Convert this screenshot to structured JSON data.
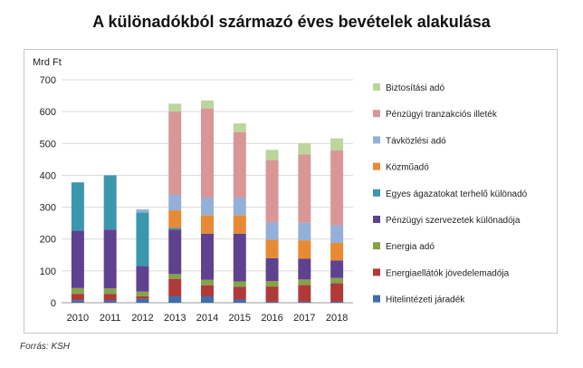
{
  "page": {
    "title": "A különadókból származó éves bevételek alakulása",
    "source": "Forrás: KSH"
  },
  "chart_data": {
    "type": "bar",
    "stacked": true,
    "title": "A különadókból származó éves bevételek alakulása",
    "ylabel": "Mrd Ft",
    "xlabel": "",
    "ylim": [
      0,
      700
    ],
    "yticks": [
      0,
      100,
      200,
      300,
      400,
      500,
      600,
      700
    ],
    "grid": true,
    "legend_position": "right",
    "categories": [
      "2010",
      "2011",
      "2012",
      "2013",
      "2014",
      "2015",
      "2016",
      "2017",
      "2018"
    ],
    "series": [
      {
        "name": "Hitelintézeti járadék",
        "color": "#3d6eae",
        "values": [
          8,
          7,
          12,
          20,
          20,
          10,
          3,
          3,
          3
        ]
      },
      {
        "name": "Energiaellátók jövedelemadója",
        "color": "#b03a3a",
        "values": [
          20,
          20,
          8,
          55,
          35,
          40,
          48,
          53,
          58
        ]
      },
      {
        "name": "Energia adó",
        "color": "#84a34a",
        "values": [
          18,
          18,
          15,
          15,
          17,
          17,
          17,
          17,
          17
        ]
      },
      {
        "name": "Pénzügyi szervezetek különadója",
        "color": "#5e4290",
        "values": [
          180,
          185,
          80,
          140,
          145,
          150,
          72,
          65,
          55
        ]
      },
      {
        "name": "Egyes ágazatokat terhelő különadó",
        "color": "#3a97ad",
        "values": [
          152,
          170,
          168,
          5,
          0,
          0,
          0,
          0,
          0
        ]
      },
      {
        "name": "Közműadó",
        "color": "#e88a33",
        "values": [
          0,
          0,
          0,
          55,
          58,
          58,
          58,
          58,
          55
        ]
      },
      {
        "name": "Távközlési adó",
        "color": "#94b0d8",
        "values": [
          0,
          0,
          10,
          50,
          55,
          55,
          55,
          55,
          55
        ]
      },
      {
        "name": "Pénzügyi tranzakciós illeték",
        "color": "#d99696",
        "values": [
          0,
          0,
          0,
          260,
          280,
          205,
          195,
          215,
          235
        ]
      },
      {
        "name": "Biztosítási adó",
        "color": "#bcd59b",
        "values": [
          0,
          0,
          0,
          25,
          25,
          28,
          32,
          35,
          38
        ]
      }
    ]
  }
}
